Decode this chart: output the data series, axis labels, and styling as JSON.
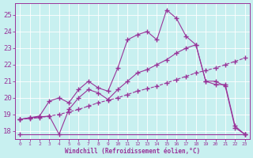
{
  "bg_color": "#c8f0f0",
  "line_color": "#993399",
  "marker": "+",
  "xlabel": "Windchill (Refroidissement éolien,°C)",
  "xlim": [
    -0.5,
    23.5
  ],
  "ylim": [
    17.5,
    25.7
  ],
  "yticks": [
    18,
    19,
    20,
    21,
    22,
    23,
    24,
    25
  ],
  "xticks": [
    0,
    1,
    2,
    3,
    4,
    5,
    6,
    7,
    8,
    9,
    10,
    11,
    12,
    13,
    14,
    15,
    16,
    17,
    18,
    19,
    20,
    21,
    22,
    23
  ],
  "jagged_x": [
    0,
    1,
    2,
    3,
    4,
    5,
    6,
    7,
    8,
    9,
    10,
    11,
    12,
    13,
    14,
    15,
    16,
    17,
    18,
    19,
    20,
    21,
    22,
    23
  ],
  "jagged_y": [
    18.7,
    18.8,
    18.9,
    19.8,
    20.0,
    19.7,
    20.5,
    21.0,
    20.6,
    20.4,
    21.8,
    23.5,
    23.8,
    24.0,
    23.5,
    25.3,
    24.8,
    23.7,
    23.2,
    21.0,
    20.8,
    20.8,
    18.3,
    17.8
  ],
  "smooth_x": [
    0,
    1,
    2,
    3,
    4,
    5,
    6,
    7,
    8,
    9,
    10,
    11,
    12,
    13,
    14,
    15,
    16,
    17,
    18,
    19,
    20,
    21,
    22,
    23
  ],
  "smooth_y": [
    18.7,
    18.8,
    18.85,
    18.9,
    17.8,
    19.3,
    20.0,
    20.5,
    20.3,
    19.9,
    20.5,
    21.0,
    21.5,
    21.7,
    22.0,
    22.3,
    22.7,
    23.0,
    23.2,
    21.0,
    21.0,
    20.7,
    18.2,
    17.8
  ],
  "linear_x": [
    0,
    1,
    2,
    3,
    4,
    5,
    6,
    7,
    8,
    9,
    10,
    11,
    12,
    13,
    14,
    15,
    16,
    17,
    18,
    19,
    20,
    21,
    22,
    23
  ],
  "linear_y": [
    18.7,
    18.75,
    18.8,
    18.9,
    19.0,
    19.15,
    19.3,
    19.5,
    19.7,
    19.85,
    20.0,
    20.2,
    20.4,
    20.55,
    20.7,
    20.9,
    21.1,
    21.3,
    21.5,
    21.65,
    21.8,
    22.0,
    22.2,
    22.4
  ],
  "hline_y": 17.8
}
